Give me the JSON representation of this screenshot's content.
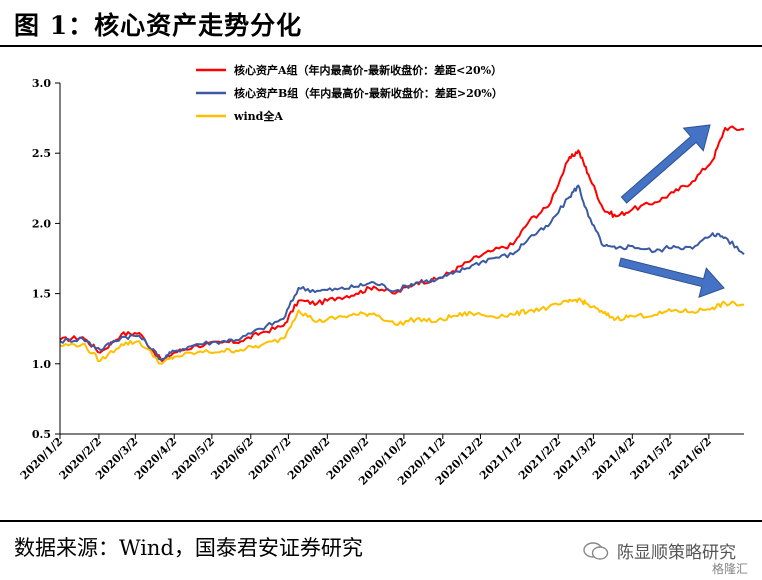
{
  "header": {
    "title": "图 1：核心资产走势分化"
  },
  "footer": {
    "source": "数据来源：Wind，国泰君安证券研究"
  },
  "watermark": {
    "account": "陈显顺策略研究",
    "brand": "格隆汇"
  },
  "chart_data": {
    "type": "line",
    "ylim": [
      0.5,
      3.0
    ],
    "yticks": [
      "0.5",
      "1.0",
      "1.5",
      "2.0",
      "2.5",
      "3.0"
    ],
    "xticks": [
      "2020/1/2",
      "2020/2/2",
      "2020/3/2",
      "2020/4/2",
      "2020/5/2",
      "2020/6/2",
      "2020/7/2",
      "2020/8/2",
      "2020/9/2",
      "2020/10/2",
      "2020/11/2",
      "2020/12/2",
      "2021/1/2",
      "2021/2/2",
      "2021/3/2",
      "2021/4/2",
      "2021/5/2",
      "2021/6/2"
    ],
    "x_range": [
      "2020/1/2",
      "2021/6/30"
    ],
    "grid": false,
    "legend_position": "top-center",
    "series": [
      {
        "name": "核心资产A组（年内最高价-最新收盘价：差距<20%）",
        "color": "#ff0000",
        "points": [
          [
            "2020/1/2",
            1.17
          ],
          [
            "2020/1/20",
            1.19
          ],
          [
            "2020/2/3",
            1.08
          ],
          [
            "2020/2/20",
            1.21
          ],
          [
            "2020/3/5",
            1.22
          ],
          [
            "2020/3/23",
            1.02
          ],
          [
            "2020/4/2",
            1.08
          ],
          [
            "2020/4/20",
            1.13
          ],
          [
            "2020/5/10",
            1.15
          ],
          [
            "2020/5/25",
            1.16
          ],
          [
            "2020/6/10",
            1.22
          ],
          [
            "2020/6/28",
            1.27
          ],
          [
            "2020/7/10",
            1.45
          ],
          [
            "2020/7/25",
            1.43
          ],
          [
            "2020/8/10",
            1.47
          ],
          [
            "2020/8/25",
            1.5
          ],
          [
            "2020/9/8",
            1.55
          ],
          [
            "2020/9/25",
            1.5
          ],
          [
            "2020/10/12",
            1.58
          ],
          [
            "2020/10/28",
            1.6
          ],
          [
            "2020/11/10",
            1.66
          ],
          [
            "2020/11/25",
            1.74
          ],
          [
            "2020/12/10",
            1.8
          ],
          [
            "2020/12/28",
            1.85
          ],
          [
            "2021/1/10",
            2.02
          ],
          [
            "2021/1/25",
            2.12
          ],
          [
            "2021/2/10",
            2.45
          ],
          [
            "2021/2/18",
            2.52
          ],
          [
            "2021/2/26",
            2.35
          ],
          [
            "2021/3/10",
            2.1
          ],
          [
            "2021/3/20",
            2.05
          ],
          [
            "2021/4/2",
            2.1
          ],
          [
            "2021/4/20",
            2.15
          ],
          [
            "2021/5/5",
            2.22
          ],
          [
            "2021/5/20",
            2.3
          ],
          [
            "2021/6/5",
            2.45
          ],
          [
            "2021/6/15",
            2.68
          ],
          [
            "2021/6/30",
            2.67
          ]
        ]
      },
      {
        "name": "核心资产B组（年内最高价-最新收盘价：差距>20%）",
        "color": "#3b5aa3",
        "points": [
          [
            "2020/1/2",
            1.16
          ],
          [
            "2020/1/20",
            1.18
          ],
          [
            "2020/2/3",
            1.1
          ],
          [
            "2020/2/20",
            1.19
          ],
          [
            "2020/3/5",
            1.2
          ],
          [
            "2020/3/23",
            1.03
          ],
          [
            "2020/4/2",
            1.09
          ],
          [
            "2020/4/20",
            1.14
          ],
          [
            "2020/5/10",
            1.16
          ],
          [
            "2020/5/25",
            1.18
          ],
          [
            "2020/6/10",
            1.25
          ],
          [
            "2020/6/28",
            1.32
          ],
          [
            "2020/7/10",
            1.54
          ],
          [
            "2020/7/25",
            1.52
          ],
          [
            "2020/8/10",
            1.53
          ],
          [
            "2020/8/25",
            1.55
          ],
          [
            "2020/9/8",
            1.58
          ],
          [
            "2020/9/25",
            1.52
          ],
          [
            "2020/10/12",
            1.58
          ],
          [
            "2020/10/28",
            1.6
          ],
          [
            "2020/11/10",
            1.64
          ],
          [
            "2020/11/25",
            1.7
          ],
          [
            "2020/12/10",
            1.75
          ],
          [
            "2020/12/28",
            1.78
          ],
          [
            "2021/1/10",
            1.9
          ],
          [
            "2021/1/25",
            1.98
          ],
          [
            "2021/2/10",
            2.18
          ],
          [
            "2021/2/18",
            2.27
          ],
          [
            "2021/2/26",
            2.05
          ],
          [
            "2021/3/10",
            1.84
          ],
          [
            "2021/3/20",
            1.82
          ],
          [
            "2021/4/2",
            1.84
          ],
          [
            "2021/4/20",
            1.8
          ],
          [
            "2021/5/5",
            1.84
          ],
          [
            "2021/5/20",
            1.82
          ],
          [
            "2021/6/5",
            1.93
          ],
          [
            "2021/6/15",
            1.9
          ],
          [
            "2021/6/30",
            1.78
          ]
        ]
      },
      {
        "name": "wind全A",
        "color": "#ffc000",
        "points": [
          [
            "2020/1/2",
            1.13
          ],
          [
            "2020/1/20",
            1.14
          ],
          [
            "2020/2/3",
            1.02
          ],
          [
            "2020/2/20",
            1.14
          ],
          [
            "2020/3/5",
            1.16
          ],
          [
            "2020/3/23",
            1.0
          ],
          [
            "2020/4/2",
            1.05
          ],
          [
            "2020/4/20",
            1.08
          ],
          [
            "2020/5/10",
            1.09
          ],
          [
            "2020/5/25",
            1.1
          ],
          [
            "2020/6/10",
            1.13
          ],
          [
            "2020/6/28",
            1.18
          ],
          [
            "2020/7/10",
            1.38
          ],
          [
            "2020/7/25",
            1.3
          ],
          [
            "2020/8/10",
            1.33
          ],
          [
            "2020/8/25",
            1.35
          ],
          [
            "2020/9/8",
            1.36
          ],
          [
            "2020/9/25",
            1.28
          ],
          [
            "2020/10/12",
            1.32
          ],
          [
            "2020/10/28",
            1.3
          ],
          [
            "2020/11/10",
            1.34
          ],
          [
            "2020/11/25",
            1.36
          ],
          [
            "2020/12/10",
            1.34
          ],
          [
            "2020/12/28",
            1.35
          ],
          [
            "2021/1/10",
            1.38
          ],
          [
            "2021/1/25",
            1.4
          ],
          [
            "2021/2/10",
            1.44
          ],
          [
            "2021/2/18",
            1.46
          ],
          [
            "2021/2/26",
            1.42
          ],
          [
            "2021/3/10",
            1.36
          ],
          [
            "2021/3/20",
            1.32
          ],
          [
            "2021/4/2",
            1.34
          ],
          [
            "2021/4/20",
            1.35
          ],
          [
            "2021/5/5",
            1.38
          ],
          [
            "2021/5/20",
            1.37
          ],
          [
            "2021/6/5",
            1.4
          ],
          [
            "2021/6/15",
            1.43
          ],
          [
            "2021/6/30",
            1.42
          ]
        ]
      }
    ],
    "annotations": [
      {
        "type": "arrow",
        "direction": "up",
        "color": "#4472c4",
        "near_series": "核心资产A组"
      },
      {
        "type": "arrow",
        "direction": "down",
        "color": "#4472c4",
        "near_series": "核心资产B组"
      }
    ]
  }
}
